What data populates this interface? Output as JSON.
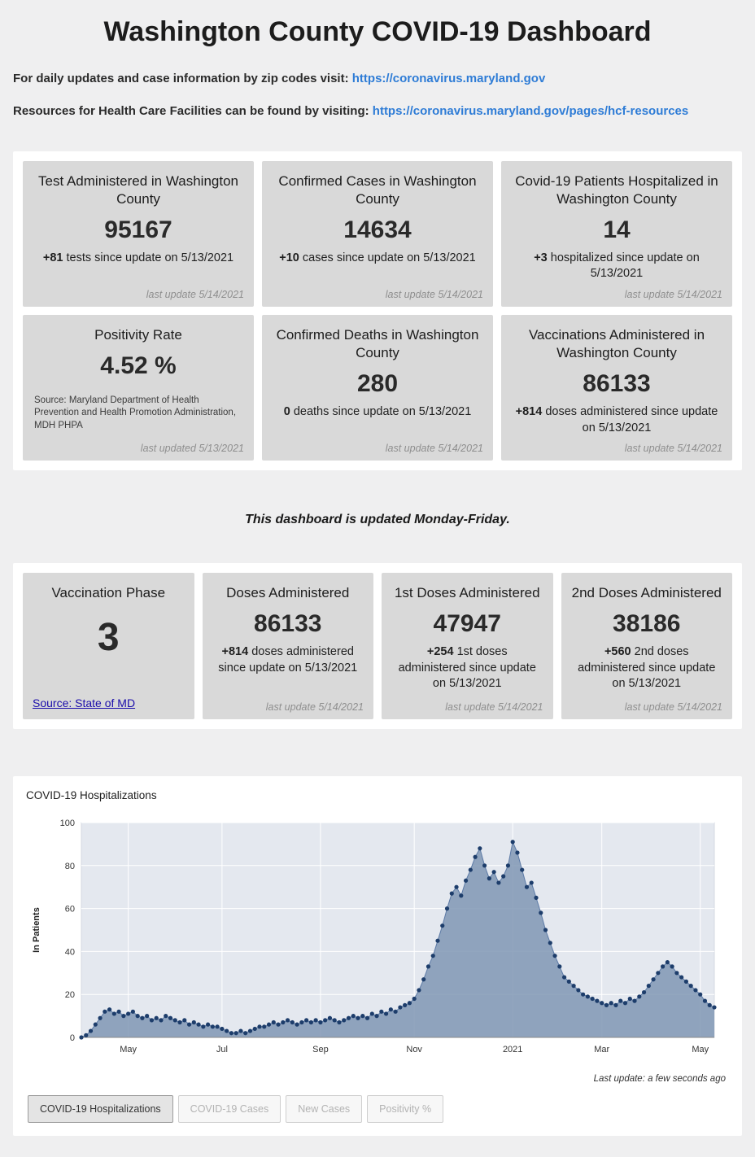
{
  "header": {
    "title": "Washington County COVID-19 Dashboard"
  },
  "intro": {
    "line1_text": "For daily updates and case information by zip codes visit:",
    "line1_link": "https://coronavirus.maryland.gov",
    "line2_text": "Resources for Health Care Facilities can be found by visiting:",
    "line2_link": "https://coronavirus.maryland.gov/pages/hcf-resources"
  },
  "stats": {
    "tests": {
      "title": "Test Administered in Washington County",
      "value": "95167",
      "delta": "+81",
      "delta_text": "tests since update on 5/13/2021",
      "last_update": "last update 5/14/2021"
    },
    "cases": {
      "title": "Confirmed Cases in Washington County",
      "value": "14634",
      "delta": "+10",
      "delta_text": "cases since update on 5/13/2021",
      "last_update": "last update 5/14/2021"
    },
    "hospitalized": {
      "title": "Covid-19 Patients Hospitalized in Washington County",
      "value": "14",
      "delta": "+3",
      "delta_text": "hospitalized since update on 5/13/2021",
      "last_update": "last update 5/14/2021"
    },
    "positivity": {
      "title": "Positivity Rate",
      "value": "4.52 %",
      "source": "Source: Maryland Department of Health Prevention and Health Promotion Administration, MDH PHPA",
      "last_update": "last updated 5/13/2021"
    },
    "deaths": {
      "title": "Confirmed Deaths in Washington County",
      "value": "280",
      "delta": "0",
      "delta_text": "deaths since update on 5/13/2021",
      "last_update": "last update 5/14/2021"
    },
    "vaccinations": {
      "title": "Vaccinations Administered in Washington County",
      "value": "86133",
      "delta": "+814",
      "delta_text": "doses administered since update on 5/13/2021",
      "last_update": "last update 5/14/2021"
    }
  },
  "note": "This dashboard is updated Monday-Friday.",
  "vaccine": {
    "phase": {
      "title": "Vaccination Phase",
      "value": "3",
      "source_link": "Source: State of MD"
    },
    "doses": {
      "title": "Doses Administered",
      "value": "86133",
      "delta": "+814",
      "delta_text": "doses administered since update on 5/13/2021",
      "last_update": "last update 5/14/2021"
    },
    "first_doses": {
      "title": "1st Doses Administered",
      "value": "47947",
      "delta": "+254",
      "delta_text": "1st doses administered since update on 5/13/2021",
      "last_update": "last update 5/14/2021"
    },
    "second_doses": {
      "title": "2nd Doses Administered",
      "value": "38186",
      "delta": "+560",
      "delta_text": "2nd doses administered since update on 5/13/2021",
      "last_update": "last update 5/14/2021"
    }
  },
  "chart": {
    "title": "COVID-19 Hospitalizations",
    "last_update": "Last update: a few seconds ago"
  },
  "chart_data": {
    "type": "area",
    "title": "COVID-19 Hospitalizations",
    "ylabel": "In Patients",
    "ylim": [
      0,
      100
    ],
    "y_ticks": [
      0,
      20,
      40,
      60,
      80,
      100
    ],
    "x_tick_labels": [
      "May",
      "Jul",
      "Sep",
      "Nov",
      "2021",
      "Mar",
      "May"
    ],
    "x_tick_indices": [
      10,
      30,
      51,
      71,
      92,
      111,
      132
    ],
    "x_range_note": "daily in-patient counts, Apr 2020 - May 2021, sampled every ~3 days",
    "values": [
      0,
      1,
      3,
      6,
      9,
      12,
      13,
      11,
      12,
      10,
      11,
      12,
      10,
      9,
      10,
      8,
      9,
      8,
      10,
      9,
      8,
      7,
      8,
      6,
      7,
      6,
      5,
      6,
      5,
      5,
      4,
      3,
      2,
      2,
      3,
      2,
      3,
      4,
      5,
      5,
      6,
      7,
      6,
      7,
      8,
      7,
      6,
      7,
      8,
      7,
      8,
      7,
      8,
      9,
      8,
      7,
      8,
      9,
      10,
      9,
      10,
      9,
      11,
      10,
      12,
      11,
      13,
      12,
      14,
      15,
      16,
      18,
      22,
      27,
      33,
      38,
      45,
      52,
      60,
      67,
      70,
      66,
      73,
      78,
      84,
      88,
      80,
      74,
      77,
      72,
      75,
      80,
      91,
      86,
      78,
      70,
      72,
      65,
      58,
      50,
      44,
      38,
      33,
      28,
      26,
      24,
      22,
      20,
      19,
      18,
      17,
      16,
      15,
      16,
      15,
      17,
      16,
      18,
      17,
      19,
      21,
      24,
      27,
      30,
      33,
      35,
      33,
      30,
      28,
      26,
      24,
      22,
      20,
      17,
      15,
      14
    ],
    "grid": true,
    "legend": "none",
    "colors": {
      "fill": "#8096b4",
      "line": "#5c7aa6",
      "dot": "#1d3d6b",
      "plot_bg": "#e4e8ef",
      "axis": "#8a8a8a"
    }
  },
  "tabs": [
    {
      "label": "COVID-19 Hospitalizations",
      "active": true
    },
    {
      "label": "COVID-19 Cases",
      "active": false
    },
    {
      "label": "New Cases",
      "active": false
    },
    {
      "label": "Positivity %",
      "active": false
    }
  ]
}
